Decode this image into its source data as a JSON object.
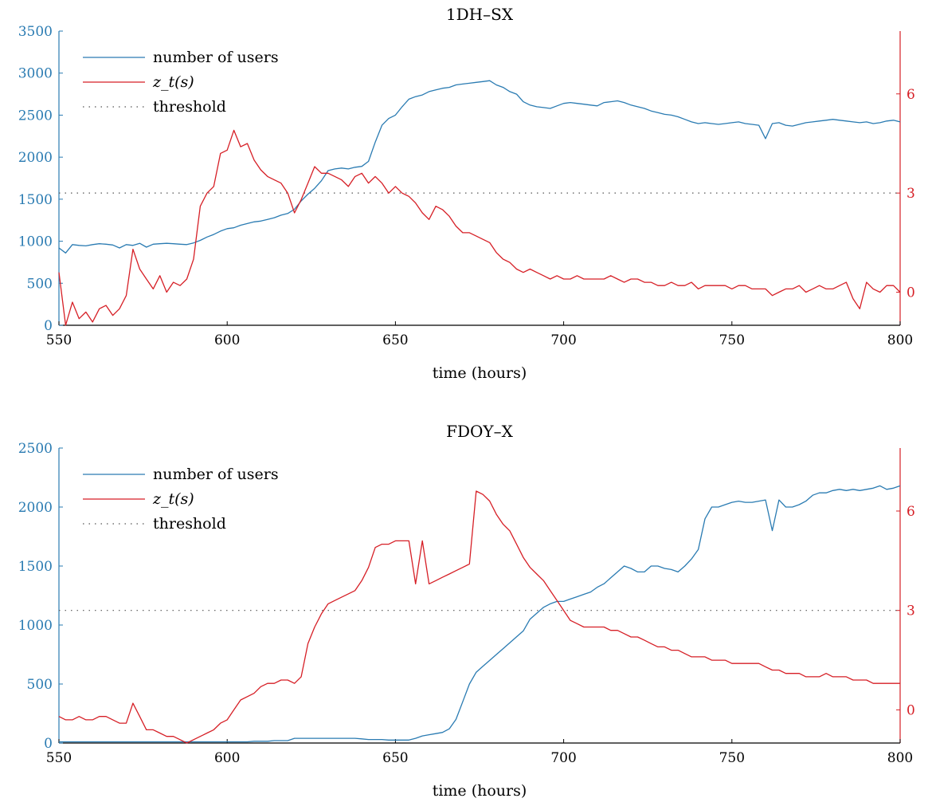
{
  "colors": {
    "users": "#2a7bb2",
    "z": "#d61f26",
    "threshold": "#555555",
    "axis": "#000000"
  },
  "chart_data": [
    {
      "type": "line",
      "title": "1DH–SX",
      "xlabel": "time (hours)",
      "xlim": [
        550,
        800
      ],
      "x_ticks": [
        550,
        600,
        650,
        700,
        750,
        800
      ],
      "y_left_lim": [
        0,
        3500
      ],
      "y_left_ticks": [
        0,
        500,
        1000,
        1500,
        2000,
        2500,
        3000,
        3500
      ],
      "y_right_lim": [
        -1.0,
        7.9
      ],
      "y_right_ticks": [
        0,
        3,
        6
      ],
      "threshold": 3,
      "legend": [
        "number of users",
        "z_t(s)",
        "threshold"
      ],
      "legend_placement": "top-left",
      "series": [
        {
          "name": "number of users",
          "axis": "left",
          "x": [
            550,
            552,
            554,
            556,
            558,
            560,
            562,
            564,
            566,
            568,
            570,
            572,
            574,
            576,
            578,
            580,
            582,
            584,
            586,
            588,
            590,
            592,
            594,
            596,
            598,
            600,
            602,
            604,
            606,
            608,
            610,
            612,
            614,
            616,
            618,
            620,
            622,
            624,
            626,
            628,
            630,
            632,
            634,
            636,
            638,
            640,
            642,
            644,
            646,
            648,
            650,
            652,
            654,
            656,
            658,
            660,
            662,
            664,
            666,
            668,
            670,
            672,
            674,
            676,
            678,
            680,
            682,
            684,
            686,
            688,
            690,
            692,
            694,
            696,
            698,
            700,
            702,
            704,
            706,
            708,
            710,
            712,
            714,
            716,
            718,
            720,
            722,
            724,
            726,
            728,
            730,
            732,
            734,
            736,
            738,
            740,
            742,
            744,
            746,
            748,
            750,
            752,
            754,
            756,
            758,
            760,
            762,
            764,
            766,
            768,
            770,
            772,
            774,
            776,
            778,
            780,
            782,
            784,
            786,
            788,
            790,
            792,
            794,
            796,
            798,
            800
          ],
          "values": [
            920,
            860,
            960,
            950,
            945,
            960,
            970,
            965,
            955,
            920,
            960,
            950,
            975,
            930,
            965,
            970,
            975,
            970,
            965,
            960,
            980,
            1010,
            1050,
            1080,
            1120,
            1150,
            1160,
            1190,
            1210,
            1230,
            1240,
            1260,
            1280,
            1310,
            1330,
            1380,
            1480,
            1560,
            1630,
            1720,
            1840,
            1860,
            1870,
            1860,
            1880,
            1890,
            1950,
            2180,
            2380,
            2460,
            2500,
            2600,
            2690,
            2720,
            2740,
            2780,
            2800,
            2820,
            2830,
            2860,
            2870,
            2880,
            2890,
            2900,
            2910,
            2860,
            2830,
            2780,
            2750,
            2660,
            2620,
            2600,
            2590,
            2580,
            2610,
            2640,
            2650,
            2640,
            2630,
            2620,
            2610,
            2650,
            2660,
            2670,
            2650,
            2620,
            2600,
            2580,
            2550,
            2530,
            2510,
            2500,
            2480,
            2450,
            2420,
            2400,
            2410,
            2400,
            2390,
            2400,
            2410,
            2420,
            2400,
            2390,
            2380,
            2220,
            2400,
            2410,
            2380,
            2370,
            2390,
            2410,
            2420,
            2430,
            2440,
            2450,
            2440,
            2430,
            2420,
            2410,
            2420,
            2400,
            2410,
            2430,
            2440,
            2420
          ]
        },
        {
          "name": "z_t(s)",
          "axis": "right",
          "x": [
            550,
            552,
            554,
            556,
            558,
            560,
            562,
            564,
            566,
            568,
            570,
            572,
            574,
            576,
            578,
            580,
            582,
            584,
            586,
            588,
            590,
            592,
            594,
            596,
            598,
            600,
            602,
            604,
            606,
            608,
            610,
            612,
            614,
            616,
            618,
            620,
            622,
            624,
            626,
            628,
            630,
            632,
            634,
            636,
            638,
            640,
            642,
            644,
            646,
            648,
            650,
            652,
            654,
            656,
            658,
            660,
            662,
            664,
            666,
            668,
            670,
            672,
            674,
            676,
            678,
            680,
            682,
            684,
            686,
            688,
            690,
            692,
            694,
            696,
            698,
            700,
            702,
            704,
            706,
            708,
            710,
            712,
            714,
            716,
            718,
            720,
            722,
            724,
            726,
            728,
            730,
            732,
            734,
            736,
            738,
            740,
            742,
            744,
            746,
            748,
            750,
            752,
            754,
            756,
            758,
            760,
            762,
            764,
            766,
            768,
            770,
            772,
            774,
            776,
            778,
            780,
            782,
            784,
            786,
            788,
            790,
            792,
            794,
            796,
            798,
            800
          ],
          "values": [
            0.6,
            -1.0,
            -0.3,
            -0.8,
            -0.6,
            -0.9,
            -0.5,
            -0.4,
            -0.7,
            -0.5,
            -0.1,
            1.3,
            0.7,
            0.4,
            0.1,
            0.5,
            0.0,
            0.3,
            0.2,
            0.4,
            1.0,
            2.6,
            3.0,
            3.2,
            4.2,
            4.3,
            4.9,
            4.4,
            4.5,
            4.0,
            3.7,
            3.5,
            3.4,
            3.3,
            3.0,
            2.4,
            2.8,
            3.3,
            3.8,
            3.6,
            3.6,
            3.5,
            3.4,
            3.2,
            3.5,
            3.6,
            3.3,
            3.5,
            3.3,
            3.0,
            3.2,
            3.0,
            2.9,
            2.7,
            2.4,
            2.2,
            2.6,
            2.5,
            2.3,
            2.0,
            1.8,
            1.8,
            1.7,
            1.6,
            1.5,
            1.2,
            1.0,
            0.9,
            0.7,
            0.6,
            0.7,
            0.6,
            0.5,
            0.4,
            0.5,
            0.4,
            0.4,
            0.5,
            0.4,
            0.4,
            0.4,
            0.4,
            0.5,
            0.4,
            0.3,
            0.4,
            0.4,
            0.3,
            0.3,
            0.2,
            0.2,
            0.3,
            0.2,
            0.2,
            0.3,
            0.1,
            0.2,
            0.2,
            0.2,
            0.2,
            0.1,
            0.2,
            0.2,
            0.1,
            0.1,
            0.1,
            -0.1,
            0.0,
            0.1,
            0.1,
            0.2,
            0.0,
            0.1,
            0.2,
            0.1,
            0.1,
            0.2,
            0.3,
            -0.2,
            -0.5,
            0.3,
            0.1,
            0.0,
            0.2,
            0.2,
            0.0
          ]
        }
      ]
    },
    {
      "type": "line",
      "title": "FDOY–X",
      "xlabel": "time (hours)",
      "xlim": [
        550,
        800
      ],
      "x_ticks": [
        550,
        600,
        650,
        700,
        750,
        800
      ],
      "y_left_lim": [
        0,
        2500
      ],
      "y_left_ticks": [
        0,
        500,
        1000,
        1500,
        2000,
        2500
      ],
      "y_right_lim": [
        -1.0,
        7.9
      ],
      "y_right_ticks": [
        0,
        3,
        6
      ],
      "threshold": 3,
      "legend": [
        "number of users",
        "z_t(s)",
        "threshold"
      ],
      "legend_placement": "top-left",
      "series": [
        {
          "name": "number of users",
          "axis": "left",
          "x": [
            550,
            552,
            554,
            556,
            558,
            560,
            562,
            564,
            566,
            568,
            570,
            572,
            574,
            576,
            578,
            580,
            582,
            584,
            586,
            588,
            590,
            592,
            594,
            596,
            598,
            600,
            602,
            604,
            606,
            608,
            610,
            612,
            614,
            616,
            618,
            620,
            622,
            624,
            626,
            628,
            630,
            632,
            634,
            636,
            638,
            640,
            642,
            644,
            646,
            648,
            650,
            652,
            654,
            656,
            658,
            660,
            662,
            664,
            666,
            668,
            670,
            672,
            674,
            676,
            678,
            680,
            682,
            684,
            686,
            688,
            690,
            692,
            694,
            696,
            698,
            700,
            702,
            704,
            706,
            708,
            710,
            712,
            714,
            716,
            718,
            720,
            722,
            724,
            726,
            728,
            730,
            732,
            734,
            736,
            738,
            740,
            742,
            744,
            746,
            748,
            750,
            752,
            754,
            756,
            758,
            760,
            762,
            764,
            766,
            768,
            770,
            772,
            774,
            776,
            778,
            780,
            782,
            784,
            786,
            788,
            790,
            792,
            794,
            796,
            798,
            800
          ],
          "values": [
            10,
            10,
            10,
            10,
            10,
            10,
            10,
            10,
            10,
            10,
            10,
            10,
            10,
            10,
            10,
            10,
            10,
            10,
            10,
            10,
            10,
            10,
            10,
            10,
            10,
            10,
            10,
            10,
            10,
            15,
            15,
            15,
            20,
            20,
            20,
            40,
            40,
            40,
            40,
            40,
            40,
            40,
            40,
            40,
            40,
            35,
            30,
            30,
            30,
            25,
            25,
            25,
            25,
            40,
            60,
            70,
            80,
            90,
            120,
            200,
            350,
            500,
            600,
            650,
            700,
            750,
            800,
            850,
            900,
            950,
            1050,
            1100,
            1150,
            1180,
            1200,
            1200,
            1220,
            1240,
            1260,
            1280,
            1320,
            1350,
            1400,
            1450,
            1500,
            1480,
            1450,
            1450,
            1500,
            1500,
            1480,
            1470,
            1450,
            1500,
            1560,
            1640,
            1900,
            2000,
            2000,
            2020,
            2040,
            2050,
            2040,
            2040,
            2050,
            2060,
            1800,
            2060,
            2000,
            2000,
            2020,
            2050,
            2100,
            2120,
            2120,
            2140,
            2150,
            2140,
            2150,
            2140,
            2150,
            2160,
            2180,
            2150,
            2160,
            2180
          ]
        },
        {
          "name": "z_t(s)",
          "axis": "right",
          "x": [
            550,
            552,
            554,
            556,
            558,
            560,
            562,
            564,
            566,
            568,
            570,
            572,
            574,
            576,
            578,
            580,
            582,
            584,
            586,
            588,
            590,
            592,
            594,
            596,
            598,
            600,
            602,
            604,
            606,
            608,
            610,
            612,
            614,
            616,
            618,
            620,
            622,
            624,
            626,
            628,
            630,
            632,
            634,
            636,
            638,
            640,
            642,
            644,
            646,
            648,
            650,
            652,
            654,
            656,
            658,
            660,
            662,
            664,
            666,
            668,
            670,
            672,
            674,
            676,
            678,
            680,
            682,
            684,
            686,
            688,
            690,
            692,
            694,
            696,
            698,
            700,
            702,
            704,
            706,
            708,
            710,
            712,
            714,
            716,
            718,
            720,
            722,
            724,
            726,
            728,
            730,
            732,
            734,
            736,
            738,
            740,
            742,
            744,
            746,
            748,
            750,
            752,
            754,
            756,
            758,
            760,
            762,
            764,
            766,
            768,
            770,
            772,
            774,
            776,
            778,
            780,
            782,
            784,
            786,
            788,
            790,
            792,
            794,
            796,
            798,
            800
          ],
          "values": [
            -0.2,
            -0.3,
            -0.3,
            -0.2,
            -0.3,
            -0.3,
            -0.2,
            -0.2,
            -0.3,
            -0.4,
            -0.4,
            0.2,
            -0.2,
            -0.6,
            -0.6,
            -0.7,
            -0.8,
            -0.8,
            -0.9,
            -1.0,
            -0.9,
            -0.8,
            -0.7,
            -0.6,
            -0.4,
            -0.3,
            0.0,
            0.3,
            0.4,
            0.5,
            0.7,
            0.8,
            0.8,
            0.9,
            0.9,
            0.8,
            1.0,
            2.0,
            2.5,
            2.9,
            3.2,
            3.3,
            3.4,
            3.5,
            3.6,
            3.9,
            4.3,
            4.9,
            5.0,
            5.0,
            5.1,
            5.1,
            5.1,
            3.8,
            5.1,
            3.8,
            3.9,
            4.0,
            4.1,
            4.2,
            4.3,
            4.4,
            6.6,
            6.5,
            6.3,
            5.9,
            5.6,
            5.4,
            5.0,
            4.6,
            4.3,
            4.1,
            3.9,
            3.6,
            3.3,
            3.0,
            2.7,
            2.6,
            2.5,
            2.5,
            2.5,
            2.5,
            2.4,
            2.4,
            2.3,
            2.2,
            2.2,
            2.1,
            2.0,
            1.9,
            1.9,
            1.8,
            1.8,
            1.7,
            1.6,
            1.6,
            1.6,
            1.5,
            1.5,
            1.5,
            1.4,
            1.4,
            1.4,
            1.4,
            1.4,
            1.3,
            1.2,
            1.2,
            1.1,
            1.1,
            1.1,
            1.0,
            1.0,
            1.0,
            1.1,
            1.0,
            1.0,
            1.0,
            0.9,
            0.9,
            0.9,
            0.8,
            0.8,
            0.8,
            0.8,
            0.8
          ]
        }
      ]
    }
  ]
}
